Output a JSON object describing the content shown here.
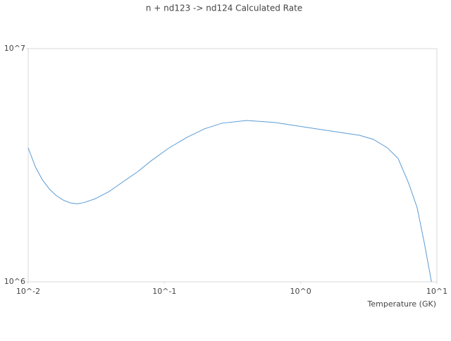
{
  "chart_data": {
    "type": "line",
    "title": "n + nd123 -> nd124 Calculated Rate",
    "x_label": "Temperature (GK)",
    "x": [
      0.01,
      0.0113,
      0.0127,
      0.0143,
      0.0161,
      0.0181,
      0.0204,
      0.023,
      0.0259,
      0.031,
      0.0393,
      0.0499,
      0.0633,
      0.0803,
      0.108,
      0.146,
      0.197,
      0.265,
      0.402,
      0.648,
      1.04,
      1.67,
      2.7,
      3.42,
      4.34,
      5.19,
      6.2,
      7.16,
      8.08,
      9.12
    ],
    "series": [
      {
        "color": "#5b9bd5",
        "values": [
          3750000,
          3110000,
          2740000,
          2500000,
          2340000,
          2240000,
          2180000,
          2160000,
          2190000,
          2270000,
          2440000,
          2690000,
          2960000,
          3310000,
          3750000,
          4160000,
          4530000,
          4790000,
          4920000,
          4820000,
          4620000,
          4430000,
          4250000,
          4080000,
          3750000,
          3380000,
          2650000,
          2080000,
          1470000,
          1000000
        ]
      }
    ],
    "xscale": "log",
    "yscale": "log",
    "xlim": [
      0.01,
      10
    ],
    "ylim": [
      1000000,
      10000000
    ],
    "xticks": [
      {
        "value": 0.01,
        "label": "10^-2"
      },
      {
        "value": 0.1,
        "label": "10^-1"
      },
      {
        "value": 1,
        "label": "10^0"
      },
      {
        "value": 10,
        "label": "10^1"
      }
    ],
    "yticks": [
      {
        "value": 1000000,
        "label": "10^6"
      },
      {
        "value": 10000000,
        "label": "10^7"
      }
    ]
  }
}
